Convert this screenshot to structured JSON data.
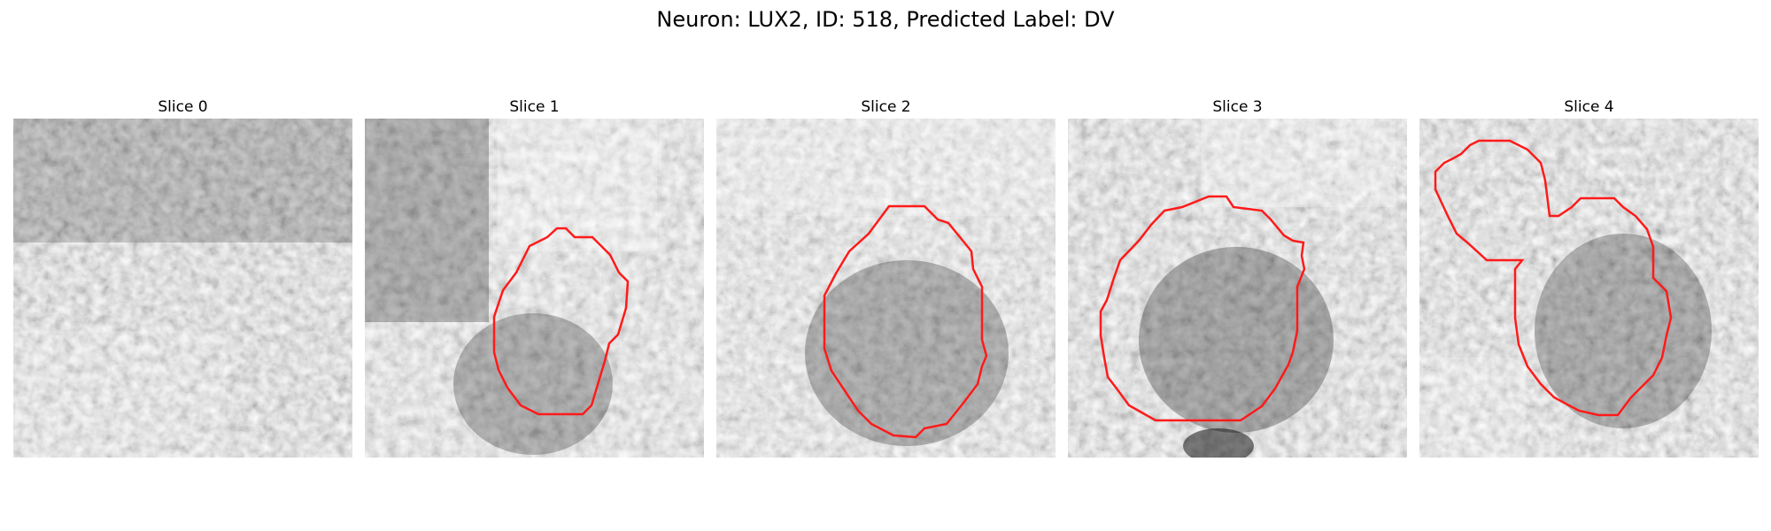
{
  "figure": {
    "title": "Neuron: LUX2, ID: 518, Predicted Label: DV"
  },
  "colors": {
    "contour": "#ff1a1a",
    "background": "#ffffff",
    "colormap": "gray"
  },
  "slices": [
    {
      "title": "Slice 0",
      "has_contour": false
    },
    {
      "title": "Slice 1",
      "has_contour": true
    },
    {
      "title": "Slice 2",
      "has_contour": true
    },
    {
      "title": "Slice 3",
      "has_contour": true
    },
    {
      "title": "Slice 4",
      "has_contour": true
    }
  ]
}
